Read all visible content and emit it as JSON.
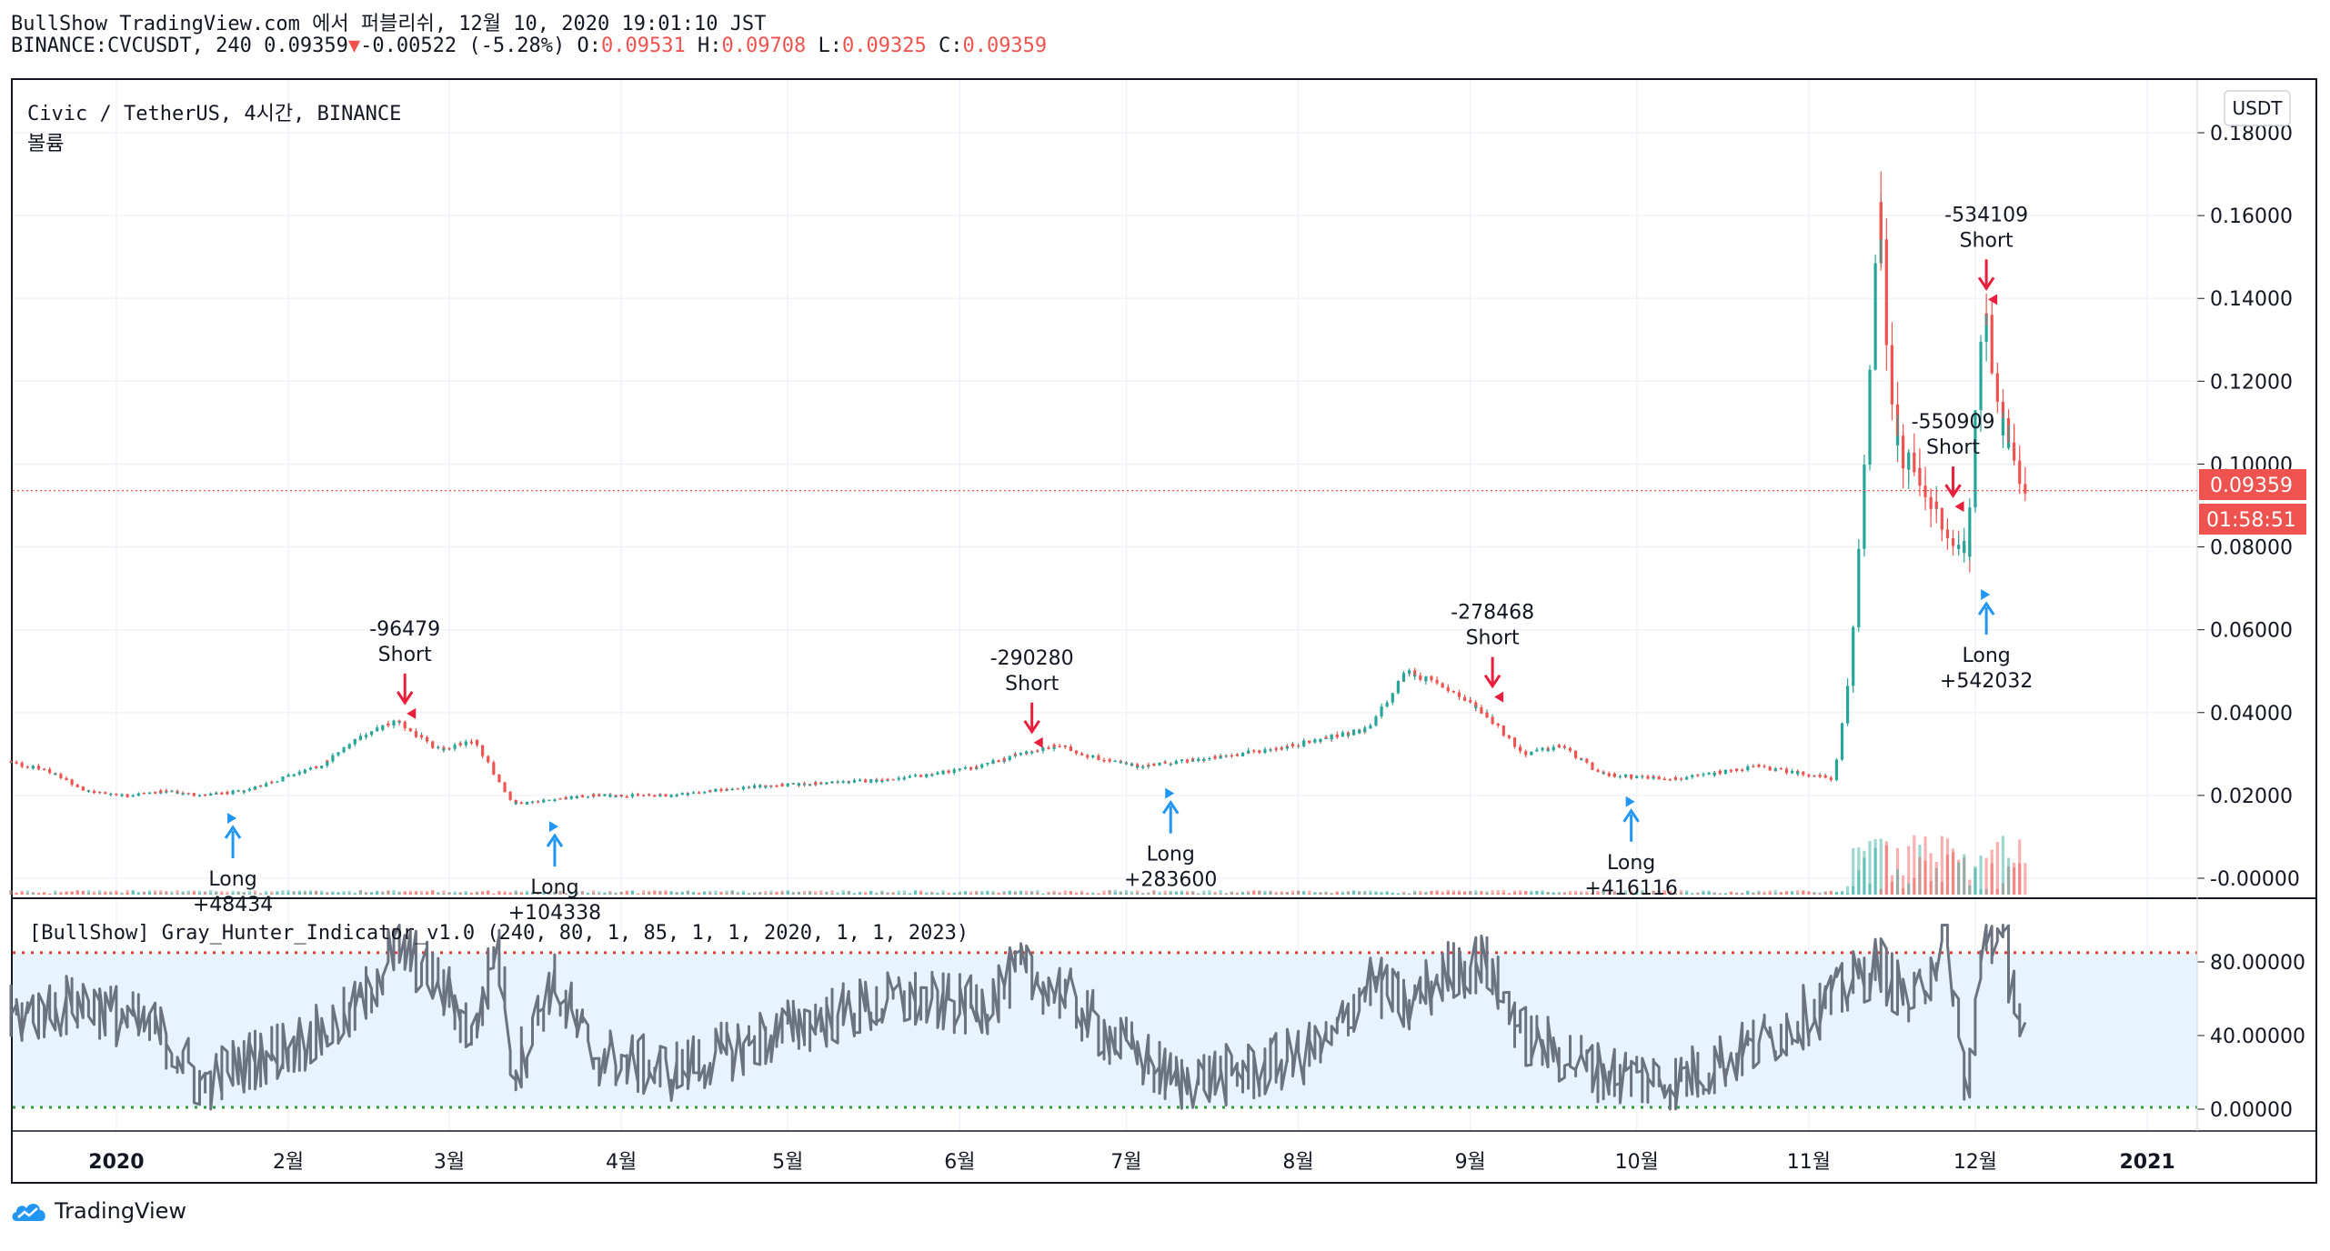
{
  "header": {
    "line1": "BullShow TradingView.com 에서 퍼블리쉬, 12월 10, 2020 19:01:10 JST",
    "symbol": "BINANCE:CVCUSDT, 240 0.09359",
    "change": "-0.00522 (-5.28%)",
    "o_label": "O:",
    "o_value": "0.09531",
    "h_label": "H:",
    "h_value": "0.09708",
    "l_label": "L:",
    "l_value": "0.09325",
    "c_label": "C:",
    "c_value": "0.09359"
  },
  "chart": {
    "title": "Civic / TetherUS, 4시간, BINANCE",
    "volume_label": "볼륨",
    "currency_button": "USDT",
    "last_price_label": "0.09359",
    "countdown_label": "01:58:51",
    "indicator_title": "[BullShow] Gray_Hunter_Indicator_v1.0 (240, 80, 1, 85, 1, 1, 2020, 1, 1, 2023)",
    "brand": "TradingView",
    "colors": {
      "up": "#26a69a",
      "down": "#ef5350",
      "long": "#2196f3",
      "short": "#e91e3c",
      "osc": "#6b7280",
      "band": "#e3f2fd",
      "last": "#ef5350"
    }
  },
  "chart_data": [
    {
      "type": "candlestick",
      "title": "Civic / TetherUS, 4시간, BINANCE",
      "x_ticks": [
        "2020",
        "2월",
        "3월",
        "4월",
        "5월",
        "6월",
        "7월",
        "8월",
        "9월",
        "10월",
        "11월",
        "12월",
        "2021"
      ],
      "y_ticks": [
        "0.18000",
        "0.16000",
        "0.14000",
        "0.12000",
        "0.10000",
        "0.08000",
        "0.06000",
        "0.04000",
        "0.02000",
        "-0.00000"
      ],
      "ylim": [
        -0.005,
        0.18
      ],
      "last_price": 0.09359,
      "approx_close_series": [
        [
          "2019-12-13",
          0.028
        ],
        [
          "2019-12-20",
          0.026
        ],
        [
          "2019-12-27",
          0.021
        ],
        [
          "2020-01-03",
          0.02
        ],
        [
          "2020-01-10",
          0.021
        ],
        [
          "2020-01-17",
          0.02
        ],
        [
          "2020-01-24",
          0.021
        ],
        [
          "2020-01-31",
          0.024
        ],
        [
          "2020-02-07",
          0.027
        ],
        [
          "2020-02-14",
          0.034
        ],
        [
          "2020-02-21",
          0.038
        ],
        [
          "2020-02-28",
          0.031
        ],
        [
          "2020-03-06",
          0.033
        ],
        [
          "2020-03-13",
          0.018
        ],
        [
          "2020-03-20",
          0.019
        ],
        [
          "2020-03-27",
          0.02
        ],
        [
          "2020-04-10",
          0.02
        ],
        [
          "2020-04-24",
          0.022
        ],
        [
          "2020-05-08",
          0.023
        ],
        [
          "2020-05-22",
          0.024
        ],
        [
          "2020-06-05",
          0.027
        ],
        [
          "2020-06-12",
          0.03
        ],
        [
          "2020-06-19",
          0.032
        ],
        [
          "2020-06-26",
          0.029
        ],
        [
          "2020-07-03",
          0.027
        ],
        [
          "2020-07-17",
          0.029
        ],
        [
          "2020-07-31",
          0.032
        ],
        [
          "2020-08-14",
          0.036
        ],
        [
          "2020-08-21",
          0.05
        ],
        [
          "2020-08-28",
          0.046
        ],
        [
          "2020-09-04",
          0.04
        ],
        [
          "2020-09-11",
          0.03
        ],
        [
          "2020-09-18",
          0.032
        ],
        [
          "2020-09-25",
          0.025
        ],
        [
          "2020-10-09",
          0.024
        ],
        [
          "2020-10-23",
          0.027
        ],
        [
          "2020-11-06",
          0.024
        ],
        [
          "2020-11-09",
          0.05
        ],
        [
          "2020-11-12",
          0.11
        ],
        [
          "2020-11-14",
          0.16
        ],
        [
          "2020-11-17",
          0.105
        ],
        [
          "2020-11-22",
          0.095
        ],
        [
          "2020-11-27",
          0.08
        ],
        [
          "2020-11-30",
          0.08
        ],
        [
          "2020-12-02",
          0.12
        ],
        [
          "2020-12-03",
          0.14
        ],
        [
          "2020-12-06",
          0.11
        ],
        [
          "2020-12-10",
          0.094
        ]
      ],
      "signals": [
        {
          "type": "Long",
          "value": "+48434",
          "date": "2020-01-22",
          "price": 0.018
        },
        {
          "type": "Short",
          "value": "-96479",
          "date": "2020-02-22",
          "price": 0.038
        },
        {
          "type": "Long",
          "value": "+104338",
          "date": "2020-03-20",
          "price": 0.016
        },
        {
          "type": "Short",
          "value": "-290280",
          "date": "2020-06-14",
          "price": 0.031
        },
        {
          "type": "Long",
          "value": "+283600",
          "date": "2020-07-09",
          "price": 0.024
        },
        {
          "type": "Short",
          "value": "-278468",
          "date": "2020-09-05",
          "price": 0.042
        },
        {
          "type": "Long",
          "value": "+416116",
          "date": "2020-09-30",
          "price": 0.022
        },
        {
          "type": "Short",
          "value": "-550909",
          "date": "2020-11-27",
          "price": 0.088
        },
        {
          "type": "Short",
          "value": "-534109",
          "date": "2020-12-03",
          "price": 0.138
        },
        {
          "type": "Long",
          "value": "+542032",
          "date": "2020-12-03",
          "price": 0.072
        }
      ]
    },
    {
      "type": "line",
      "title": "[BullShow] Gray_Hunter_Indicator_v1.0 (240, 80, 1, 85, 1, 1, 2020, 1, 1, 2023)",
      "y_ticks": [
        "80.00000",
        "40.00000",
        "0.00000"
      ],
      "ylim": [
        -3,
        103
      ],
      "upper_band": 85,
      "lower_band": 1,
      "approx_series": [
        [
          "2019-12-13",
          50
        ],
        [
          "2019-12-27",
          58
        ],
        [
          "2020-01-10",
          40
        ],
        [
          "2020-01-17",
          12
        ],
        [
          "2020-01-24",
          25
        ],
        [
          "2020-02-07",
          40
        ],
        [
          "2020-02-14",
          55
        ],
        [
          "2020-02-21",
          90
        ],
        [
          "2020-02-28",
          70
        ],
        [
          "2020-03-06",
          40
        ],
        [
          "2020-03-10",
          95
        ],
        [
          "2020-03-13",
          20
        ],
        [
          "2020-03-20",
          70
        ],
        [
          "2020-03-27",
          30
        ],
        [
          "2020-04-10",
          20
        ],
        [
          "2020-04-24",
          35
        ],
        [
          "2020-05-08",
          50
        ],
        [
          "2020-05-22",
          60
        ],
        [
          "2020-06-05",
          55
        ],
        [
          "2020-06-12",
          75
        ],
        [
          "2020-06-19",
          65
        ],
        [
          "2020-06-26",
          45
        ],
        [
          "2020-07-10",
          15
        ],
        [
          "2020-07-24",
          20
        ],
        [
          "2020-08-07",
          35
        ],
        [
          "2020-08-14",
          70
        ],
        [
          "2020-08-21",
          55
        ],
        [
          "2020-08-28",
          75
        ],
        [
          "2020-09-04",
          80
        ],
        [
          "2020-09-11",
          40
        ],
        [
          "2020-09-25",
          20
        ],
        [
          "2020-10-09",
          15
        ],
        [
          "2020-10-23",
          35
        ],
        [
          "2020-11-06",
          60
        ],
        [
          "2020-11-14",
          80
        ],
        [
          "2020-11-20",
          55
        ],
        [
          "2020-11-26",
          95
        ],
        [
          "2020-11-30",
          5
        ],
        [
          "2020-12-03",
          97
        ],
        [
          "2020-12-07",
          85
        ],
        [
          "2020-12-10",
          40
        ]
      ]
    }
  ]
}
